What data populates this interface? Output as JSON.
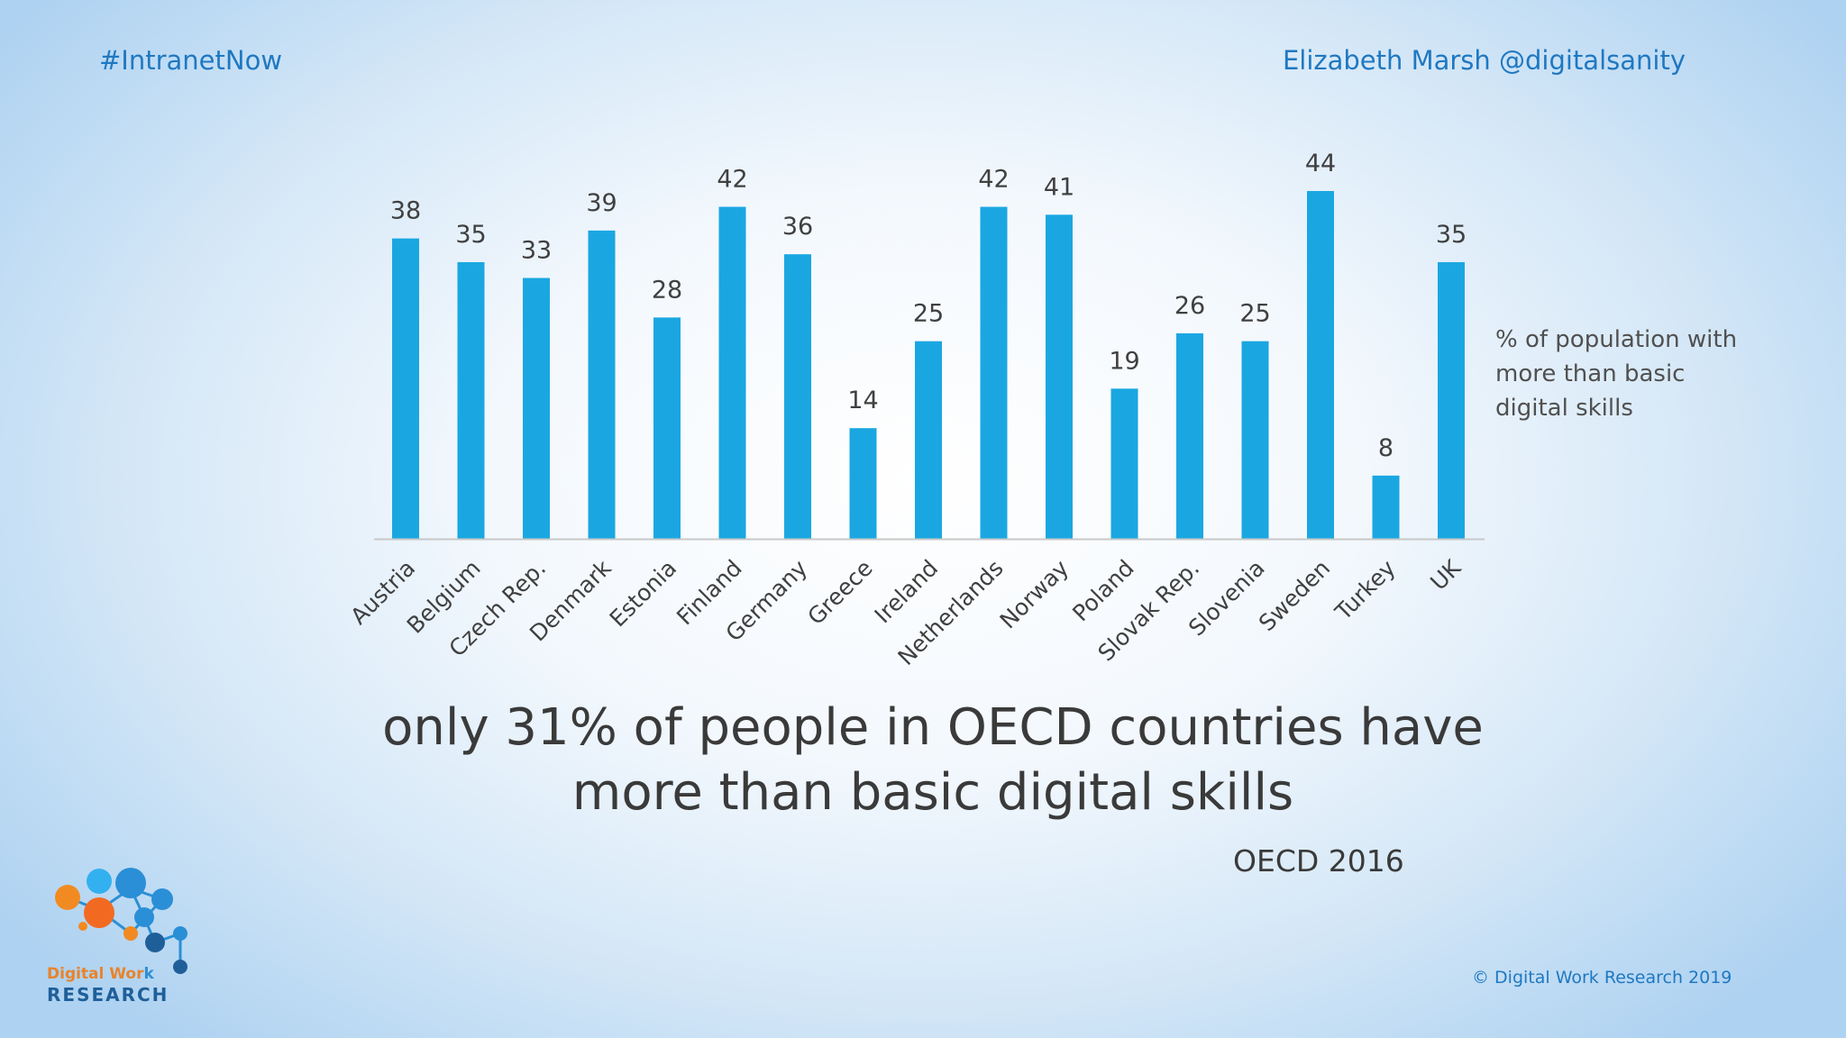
{
  "header": {
    "hashtag": "#IntranetNow",
    "author": "Elizabeth Marsh @digitalsanity"
  },
  "chart_data": {
    "type": "bar",
    "categories": [
      "Austria",
      "Belgium",
      "Czech Rep.",
      "Denmark",
      "Estonia",
      "Finland",
      "Germany",
      "Greece",
      "Ireland",
      "Netherlands",
      "Norway",
      "Poland",
      "Slovak Rep.",
      "Slovenia",
      "Sweden",
      "Turkey",
      "UK"
    ],
    "series": [
      {
        "name": "% of population with more than basic digital skills",
        "values": [
          38,
          35,
          33,
          39,
          28,
          42,
          36,
          14,
          25,
          42,
          41,
          19,
          26,
          25,
          44,
          8,
          35
        ]
      }
    ],
    "ylim": [
      0,
      44
    ],
    "grid": false,
    "legend": "right",
    "bar_color": "#1aa7e1"
  },
  "legend_lines": [
    "% of population with",
    "more than basic",
    "digital skills"
  ],
  "headline_lines": [
    "only 31% of people in OECD countries have",
    "more than basic digital skills"
  ],
  "source": "OECD 2016",
  "footer": {
    "copyright": "© Digital Work Research 2019"
  },
  "logo": {
    "line1_part1": "Digital Wor",
    "line1_part2": "k",
    "line2": "RESEARCH",
    "colors": {
      "orange": "#f28a22",
      "blue": "#2a8fd6",
      "light_blue": "#33b0f0",
      "navy": "#1f5f99"
    }
  },
  "colors": {
    "accent": "#1f78c1",
    "text": "#3a3a3a",
    "axis": "#c8c8c8"
  }
}
